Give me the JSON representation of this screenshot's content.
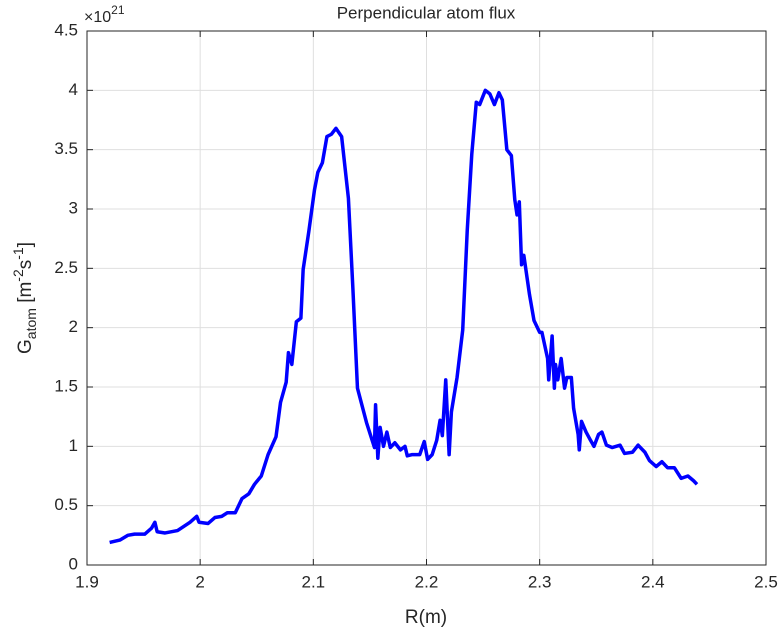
{
  "chart_data": {
    "type": "line",
    "title": "Perpendicular atom flux",
    "xlabel": "R(m)",
    "ylabel": {
      "base": "G",
      "sub": "atom",
      "unit_open": " [m",
      "exp1": "-2",
      "unit_mid": "s",
      "exp2": "-1",
      "unit_close": "]"
    },
    "y_multiplier": {
      "base": "×10",
      "exponent": "21"
    },
    "color": "#0000ff",
    "grid": true,
    "xlim": [
      1.9,
      2.5
    ],
    "xticks": [
      1.9,
      2,
      2.1,
      2.2,
      2.3,
      2.4,
      2.5
    ],
    "ylim": [
      0,
      4.5
    ],
    "yticks": [
      0,
      0.5,
      1,
      1.5,
      2,
      2.5,
      3,
      3.5,
      4,
      4.5
    ],
    "x": [
      1.92,
      1.929,
      1.936,
      1.942,
      1.951,
      1.957,
      1.96,
      1.962,
      1.969,
      1.98,
      1.991,
      1.997,
      1.999,
      2.007,
      2.013,
      2.019,
      2.024,
      2.031,
      2.037,
      2.043,
      2.048,
      2.054,
      2.06,
      2.067,
      2.071,
      2.076,
      2.078,
      2.081,
      2.085,
      2.089,
      2.091,
      2.096,
      2.101,
      2.104,
      2.108,
      2.112,
      2.116,
      2.12,
      2.125,
      2.131,
      2.135,
      2.139,
      2.147,
      2.152,
      2.154,
      2.155,
      2.157,
      2.159,
      2.162,
      2.165,
      2.168,
      2.172,
      2.177,
      2.181,
      2.183,
      2.187,
      2.194,
      2.198,
      2.201,
      2.205,
      2.209,
      2.212,
      2.214,
      2.217,
      2.22,
      2.222,
      2.227,
      2.232,
      2.236,
      2.24,
      2.244,
      2.247,
      2.252,
      2.256,
      2.26,
      2.264,
      2.267,
      2.271,
      2.275,
      2.278,
      2.28,
      2.282,
      2.284,
      2.286,
      2.291,
      2.295,
      2.3,
      2.302,
      2.307,
      2.308,
      2.311,
      2.313,
      2.314,
      2.316,
      2.319,
      2.322,
      2.324,
      2.328,
      2.33,
      2.334,
      2.335,
      2.337,
      2.341,
      2.345,
      2.348,
      2.352,
      2.355,
      2.359,
      2.364,
      2.371,
      2.375,
      2.382,
      2.387,
      2.393,
      2.397,
      2.403,
      2.408,
      2.413,
      2.419,
      2.425,
      2.431,
      2.436,
      2.439
    ],
    "values": [
      0.19,
      0.21,
      0.25,
      0.26,
      0.26,
      0.31,
      0.36,
      0.28,
      0.27,
      0.29,
      0.36,
      0.41,
      0.36,
      0.35,
      0.4,
      0.41,
      0.44,
      0.44,
      0.56,
      0.6,
      0.68,
      0.75,
      0.93,
      1.08,
      1.37,
      1.54,
      1.79,
      1.69,
      2.05,
      2.08,
      2.49,
      2.81,
      3.16,
      3.31,
      3.39,
      3.61,
      3.63,
      3.68,
      3.61,
      3.09,
      2.32,
      1.49,
      1.2,
      1.05,
      0.99,
      1.35,
      0.9,
      1.16,
      1.0,
      1.12,
      0.99,
      1.03,
      0.97,
      1.0,
      0.92,
      0.93,
      0.93,
      1.04,
      0.89,
      0.93,
      1.05,
      1.22,
      1.09,
      1.56,
      0.93,
      1.29,
      1.58,
      1.98,
      2.82,
      3.46,
      3.9,
      3.88,
      4.0,
      3.97,
      3.88,
      3.98,
      3.92,
      3.5,
      3.45,
      3.08,
      2.95,
      3.06,
      2.53,
      2.61,
      2.28,
      2.06,
      1.96,
      1.96,
      1.74,
      1.56,
      1.93,
      1.49,
      1.69,
      1.56,
      1.74,
      1.49,
      1.58,
      1.58,
      1.32,
      1.1,
      0.97,
      1.21,
      1.12,
      1.05,
      1.0,
      1.1,
      1.12,
      1.01,
      0.99,
      1.01,
      0.94,
      0.95,
      1.01,
      0.95,
      0.88,
      0.83,
      0.87,
      0.82,
      0.82,
      0.73,
      0.75,
      0.71,
      0.68
    ]
  }
}
